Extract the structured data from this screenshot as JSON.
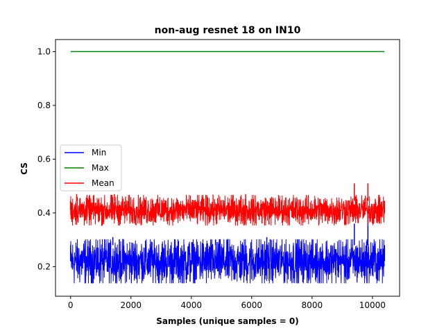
{
  "chart_data": {
    "type": "line",
    "title": "non-aug resnet 18 on IN10",
    "xlabel": "Samples (unique samples = 0)",
    "ylabel": "CS",
    "xlim": [
      -500,
      10900
    ],
    "ylim": [
      0.09,
      1.045
    ],
    "xticks": [
      0,
      2000,
      4000,
      6000,
      8000,
      10000
    ],
    "yticks": [
      0.2,
      0.4,
      0.6,
      0.8,
      1.0
    ],
    "ytick_labels": [
      "0.2",
      "0.4",
      "0.6",
      "0.8",
      "1.0"
    ],
    "grid": false,
    "legend": {
      "placement": "center-left",
      "entries": [
        "Min",
        "Max",
        "Mean"
      ]
    },
    "x_range": [
      0,
      10400
    ],
    "series": [
      {
        "name": "Min",
        "color": "#0000ff",
        "band_low": 0.15,
        "band_high": 0.29,
        "points": [
          [
            0,
            0.22
          ],
          [
            1400,
            0.31
          ],
          [
            4800,
            0.3
          ],
          [
            6500,
            0.31
          ],
          [
            9400,
            0.36
          ],
          [
            9850,
            0.39
          ],
          [
            10400,
            0.22
          ]
        ]
      },
      {
        "name": "Max",
        "color": "#008000",
        "points": [
          [
            0,
            1.0
          ],
          [
            10400,
            1.0
          ]
        ]
      },
      {
        "name": "Mean",
        "color": "#ff0000",
        "band_low": 0.365,
        "band_high": 0.455,
        "points": [
          [
            0,
            0.41
          ],
          [
            200,
            0.47
          ],
          [
            1450,
            0.47
          ],
          [
            5800,
            0.47
          ],
          [
            9400,
            0.51
          ],
          [
            9850,
            0.51
          ],
          [
            10400,
            0.4
          ]
        ]
      }
    ]
  }
}
